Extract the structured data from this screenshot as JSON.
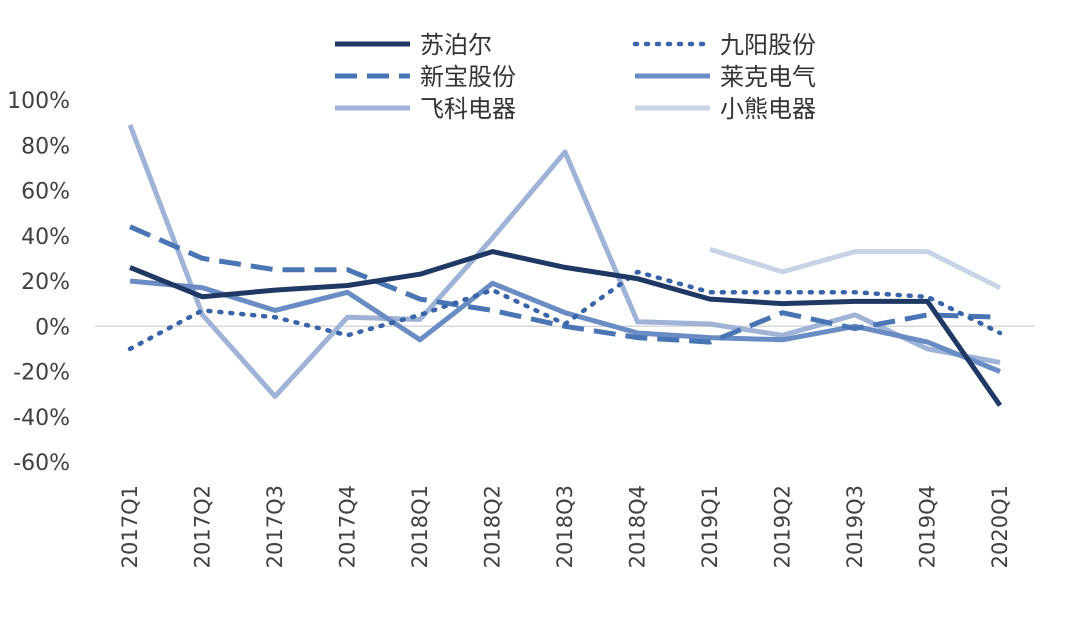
{
  "chart_data": {
    "type": "line",
    "title": "",
    "xlabel": "",
    "ylabel": "",
    "categories": [
      "2017Q1",
      "2017Q2",
      "2017Q3",
      "2017Q4",
      "2018Q1",
      "2018Q2",
      "2018Q3",
      "2018Q4",
      "2019Q1",
      "2019Q2",
      "2019Q3",
      "2019Q4",
      "2020Q1"
    ],
    "ylim": [
      -60,
      100
    ],
    "yticks": [
      100,
      80,
      60,
      40,
      20,
      0,
      -20,
      -40,
      -60
    ],
    "ytick_labels": [
      "100%",
      "80%",
      "60%",
      "40%",
      "20%",
      "0%",
      "-20%",
      "-40%",
      "-60%"
    ],
    "legend_position": "top",
    "grid": false,
    "series": [
      {
        "name": "苏泊尔",
        "color": "#1f3864",
        "dash": "solid",
        "values": [
          26,
          13,
          16,
          18,
          23,
          33,
          26,
          21,
          12,
          10,
          11,
          11,
          -35
        ]
      },
      {
        "name": "九阳股份",
        "color": "#3a64a8",
        "dash": "dotted",
        "values": [
          -10,
          7,
          4,
          -4,
          5,
          16,
          1,
          24,
          15,
          15,
          15,
          13,
          -3
        ]
      },
      {
        "name": "新宝股份",
        "color": "#4a75b5",
        "dash": "dashed",
        "values": [
          44,
          30,
          25,
          25,
          12,
          7,
          0,
          -5,
          -7,
          6,
          -1,
          5,
          4
        ]
      },
      {
        "name": "莱克电气",
        "color": "#6a8cc4",
        "dash": "solid",
        "values": [
          20,
          17,
          7,
          15,
          -6,
          19,
          6,
          -3,
          -5,
          -6,
          0,
          -7,
          -20
        ]
      },
      {
        "name": "飞科电器",
        "color": "#9fb3d6",
        "dash": "solid",
        "values": [
          89,
          5,
          -31,
          4,
          3,
          39,
          77,
          2,
          1,
          -4,
          5,
          -10,
          -16
        ]
      },
      {
        "name": "小熊电器",
        "color": "#c9d3e6",
        "dash": "solid",
        "values": [
          null,
          null,
          null,
          null,
          null,
          null,
          null,
          null,
          34,
          24,
          33,
          33,
          17
        ]
      }
    ]
  }
}
